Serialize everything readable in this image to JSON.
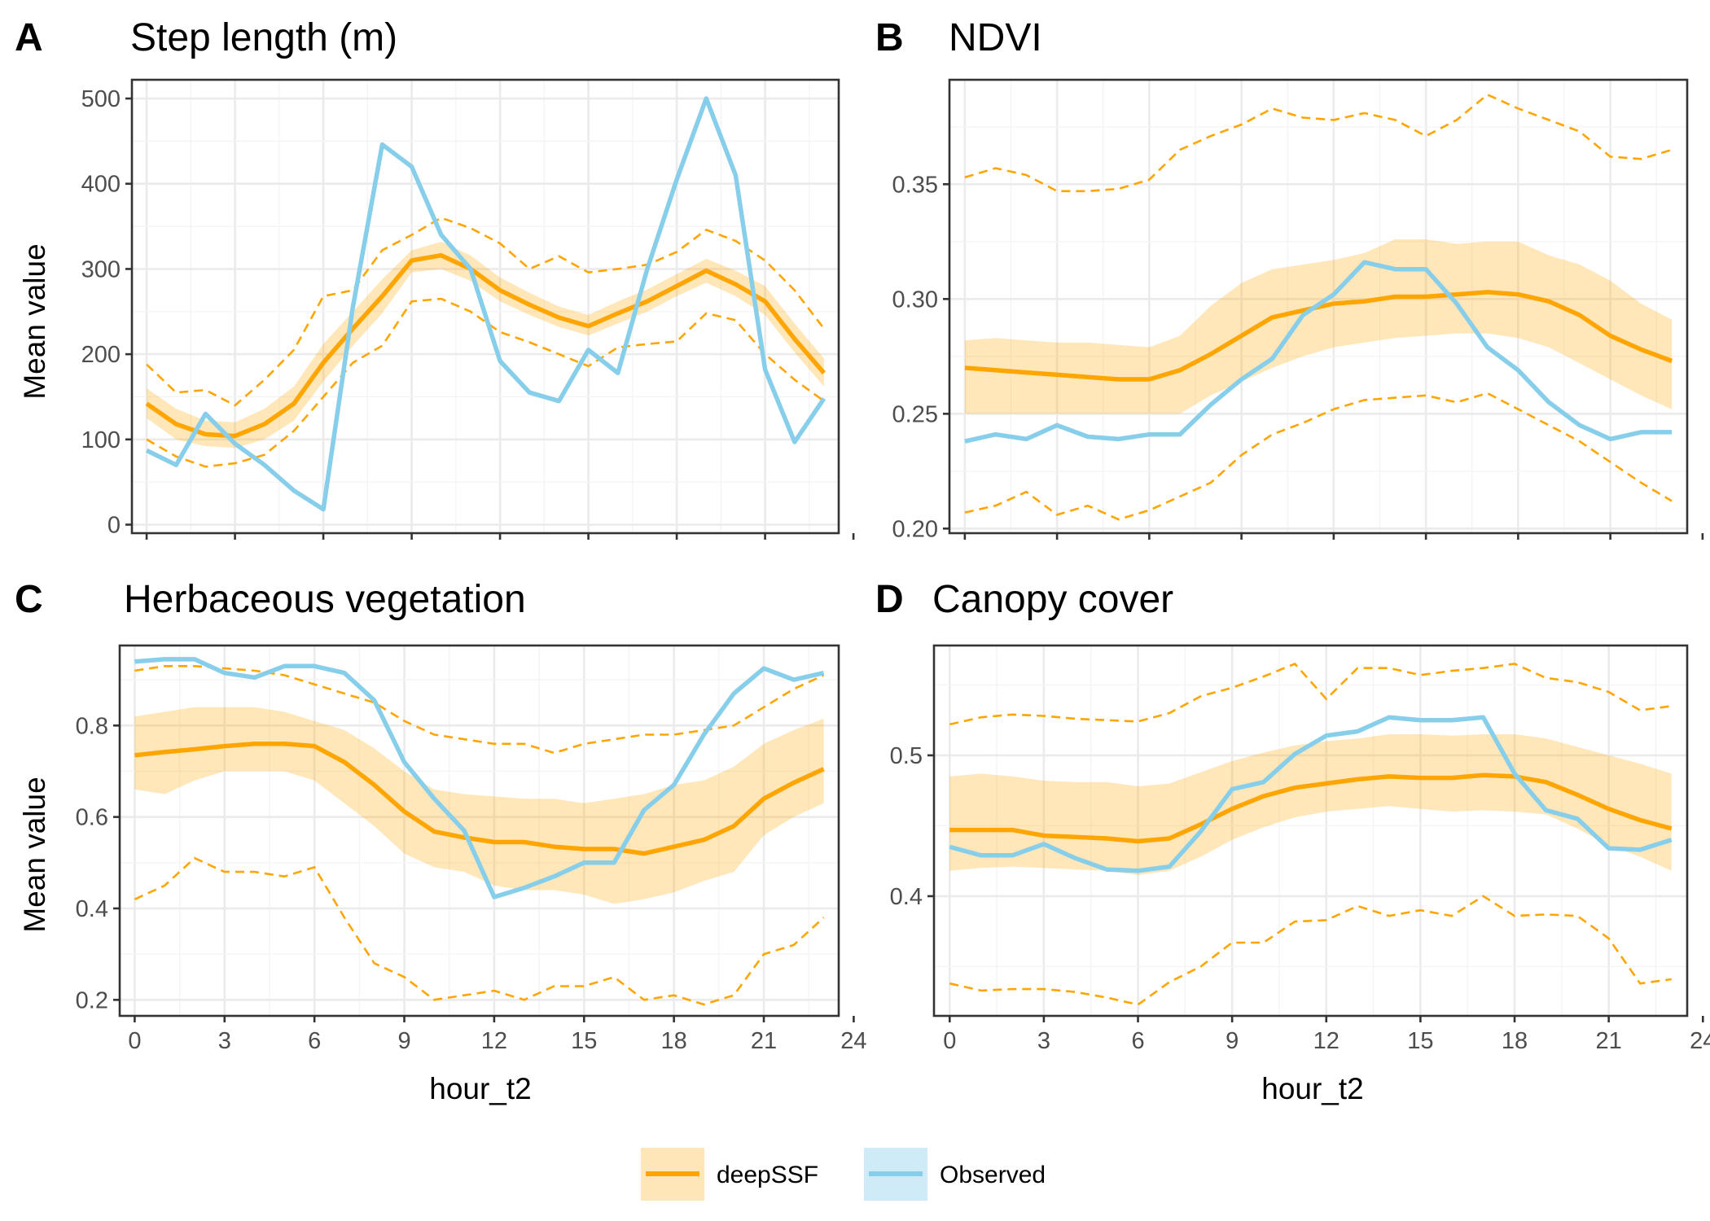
{
  "colors": {
    "deepSSF": "#FFA500",
    "observed": "#87CEEB",
    "grid_major": "#ebebeb",
    "grid_minor": "#f4f4f4",
    "panel_border": "#333333"
  },
  "legend": {
    "items": [
      {
        "label": "deepSSF",
        "color": "#FFA500"
      },
      {
        "label": "Observed",
        "color": "#87CEEB"
      }
    ],
    "position": "bottom"
  },
  "chart_data": [
    {
      "panel": "A",
      "title": "Step length (m)",
      "type": "line",
      "xlabel": "",
      "ylabel": "Mean value",
      "xlim": [
        -0.5,
        23.5
      ],
      "ylim": [
        -10,
        522
      ],
      "xticks": [],
      "yticks": [
        0,
        100,
        200,
        300,
        400,
        500
      ],
      "ytick_labels": [
        "0",
        "100",
        "200",
        "300",
        "400",
        "500"
      ],
      "grid": true,
      "x": [
        0,
        1,
        2,
        3,
        4,
        5,
        6,
        7,
        8,
        9,
        10,
        11,
        12,
        13,
        14,
        15,
        16,
        17,
        18,
        19,
        20,
        21,
        22,
        23
      ],
      "series": [
        {
          "name": "deepSSF",
          "kind": "mean",
          "values": [
            142,
            118,
            106,
            104,
            118,
            142,
            190,
            230,
            268,
            310,
            316,
            300,
            275,
            258,
            243,
            233,
            248,
            262,
            280,
            298,
            282,
            262,
            218,
            178
          ]
        },
        {
          "kind": "band_lower",
          "values": [
            125,
            100,
            92,
            90,
            100,
            122,
            168,
            210,
            248,
            296,
            300,
            286,
            262,
            246,
            232,
            222,
            236,
            250,
            268,
            284,
            268,
            246,
            202,
            162
          ]
        },
        {
          "kind": "band_upper",
          "values": [
            160,
            136,
            122,
            120,
            136,
            162,
            212,
            250,
            288,
            322,
            332,
            316,
            290,
            272,
            256,
            246,
            262,
            276,
            294,
            312,
            298,
            280,
            236,
            195
          ]
        },
        {
          "kind": "interval_lower",
          "values": [
            100,
            80,
            68,
            72,
            82,
            110,
            150,
            190,
            210,
            262,
            265,
            250,
            226,
            214,
            200,
            186,
            208,
            212,
            215,
            248,
            240,
            200,
            170,
            145
          ]
        },
        {
          "kind": "interval_upper",
          "values": [
            188,
            155,
            158,
            140,
            170,
            205,
            268,
            275,
            322,
            340,
            360,
            348,
            330,
            300,
            315,
            296,
            300,
            305,
            320,
            346,
            333,
            310,
            275,
            230
          ]
        },
        {
          "name": "Observed",
          "kind": "observed",
          "values": [
            87,
            70,
            130,
            95,
            70,
            40,
            18,
            255,
            446,
            420,
            340,
            300,
            192,
            155,
            145,
            205,
            178,
            300,
            405,
            500,
            410,
            182,
            97,
            148
          ]
        }
      ]
    },
    {
      "panel": "B",
      "title": "NDVI",
      "type": "line",
      "xlabel": "",
      "ylabel": "",
      "xlim": [
        -0.5,
        23.5
      ],
      "ylim": [
        0.198,
        0.3955
      ],
      "xticks": [],
      "yticks": [
        0.2,
        0.25,
        0.3,
        0.35
      ],
      "ytick_labels": [
        "0.20",
        "0.25",
        "0.30",
        "0.35"
      ],
      "grid": true,
      "x": [
        0,
        1,
        2,
        3,
        4,
        5,
        6,
        7,
        8,
        9,
        10,
        11,
        12,
        13,
        14,
        15,
        16,
        17,
        18,
        19,
        20,
        21,
        22,
        23
      ],
      "series": [
        {
          "name": "deepSSF",
          "kind": "mean",
          "values": [
            0.27,
            0.269,
            0.268,
            0.267,
            0.266,
            0.265,
            0.265,
            0.269,
            0.276,
            0.284,
            0.292,
            0.295,
            0.298,
            0.299,
            0.301,
            0.301,
            0.302,
            0.303,
            0.302,
            0.299,
            0.293,
            0.284,
            0.278,
            0.273
          ]
        },
        {
          "kind": "band_lower",
          "values": [
            0.25,
            0.25,
            0.25,
            0.25,
            0.25,
            0.25,
            0.25,
            0.25,
            0.258,
            0.264,
            0.27,
            0.275,
            0.279,
            0.281,
            0.283,
            0.284,
            0.285,
            0.285,
            0.283,
            0.279,
            0.272,
            0.265,
            0.258,
            0.252
          ]
        },
        {
          "kind": "band_upper",
          "values": [
            0.282,
            0.283,
            0.282,
            0.281,
            0.281,
            0.28,
            0.279,
            0.284,
            0.297,
            0.307,
            0.313,
            0.315,
            0.317,
            0.32,
            0.326,
            0.326,
            0.324,
            0.325,
            0.325,
            0.319,
            0.315,
            0.308,
            0.298,
            0.291
          ]
        },
        {
          "kind": "interval_lower",
          "values": [
            0.207,
            0.21,
            0.216,
            0.206,
            0.21,
            0.204,
            0.208,
            0.214,
            0.22,
            0.232,
            0.241,
            0.246,
            0.252,
            0.256,
            0.257,
            0.258,
            0.255,
            0.259,
            0.252,
            0.245,
            0.238,
            0.229,
            0.22,
            0.212
          ]
        },
        {
          "kind": "interval_upper",
          "values": [
            0.353,
            0.357,
            0.354,
            0.347,
            0.347,
            0.348,
            0.352,
            0.365,
            0.371,
            0.376,
            0.383,
            0.379,
            0.378,
            0.381,
            0.378,
            0.371,
            0.378,
            0.389,
            0.383,
            0.378,
            0.373,
            0.362,
            0.361,
            0.365
          ]
        },
        {
          "name": "Observed",
          "kind": "observed",
          "values": [
            0.238,
            0.241,
            0.239,
            0.245,
            0.24,
            0.239,
            0.241,
            0.241,
            0.254,
            0.265,
            0.274,
            0.293,
            0.302,
            0.316,
            0.313,
            0.313,
            0.298,
            0.279,
            0.269,
            0.255,
            0.245,
            0.239,
            0.242,
            0.242
          ]
        }
      ]
    },
    {
      "panel": "C",
      "title": "Herbaceous vegetation",
      "type": "line",
      "xlabel": "hour_t2",
      "ylabel": "Mean value",
      "xlim": [
        -0.5,
        23.5
      ],
      "ylim": [
        0.165,
        0.975
      ],
      "xticks": [
        0,
        3,
        6,
        9,
        12,
        15,
        18,
        21,
        24
      ],
      "xtick_labels": [
        "0",
        "3",
        "6",
        "9",
        "12",
        "15",
        "18",
        "21",
        "24"
      ],
      "yticks": [
        0.2,
        0.4,
        0.6,
        0.8
      ],
      "ytick_labels": [
        "0.2",
        "0.4",
        "0.6",
        "0.8"
      ],
      "grid": true,
      "x": [
        0,
        1,
        2,
        3,
        4,
        5,
        6,
        7,
        8,
        9,
        10,
        11,
        12,
        13,
        14,
        15,
        16,
        17,
        18,
        19,
        20,
        21,
        22,
        23
      ],
      "series": [
        {
          "name": "deepSSF",
          "kind": "mean",
          "values": [
            0.735,
            0.742,
            0.748,
            0.755,
            0.76,
            0.76,
            0.755,
            0.72,
            0.67,
            0.612,
            0.568,
            0.555,
            0.545,
            0.545,
            0.535,
            0.53,
            0.53,
            0.52,
            0.535,
            0.55,
            0.58,
            0.64,
            0.675,
            0.705
          ]
        },
        {
          "kind": "band_lower",
          "values": [
            0.66,
            0.65,
            0.68,
            0.7,
            0.7,
            0.7,
            0.68,
            0.63,
            0.58,
            0.52,
            0.49,
            0.48,
            0.45,
            0.44,
            0.44,
            0.43,
            0.41,
            0.42,
            0.435,
            0.46,
            0.48,
            0.56,
            0.6,
            0.63
          ]
        },
        {
          "kind": "band_upper",
          "values": [
            0.82,
            0.83,
            0.84,
            0.84,
            0.84,
            0.83,
            0.81,
            0.79,
            0.75,
            0.7,
            0.66,
            0.65,
            0.645,
            0.64,
            0.64,
            0.63,
            0.64,
            0.65,
            0.67,
            0.68,
            0.71,
            0.76,
            0.79,
            0.815
          ]
        },
        {
          "kind": "interval_lower",
          "values": [
            0.42,
            0.45,
            0.51,
            0.48,
            0.48,
            0.47,
            0.49,
            0.38,
            0.28,
            0.25,
            0.2,
            0.21,
            0.22,
            0.2,
            0.23,
            0.23,
            0.25,
            0.2,
            0.21,
            0.19,
            0.21,
            0.3,
            0.32,
            0.38
          ]
        },
        {
          "kind": "interval_upper",
          "values": [
            0.92,
            0.93,
            0.93,
            0.925,
            0.92,
            0.91,
            0.89,
            0.87,
            0.85,
            0.81,
            0.78,
            0.77,
            0.76,
            0.76,
            0.74,
            0.76,
            0.77,
            0.78,
            0.78,
            0.79,
            0.8,
            0.84,
            0.88,
            0.91
          ]
        },
        {
          "name": "Observed",
          "kind": "observed",
          "values": [
            0.94,
            0.945,
            0.945,
            0.915,
            0.905,
            0.93,
            0.93,
            0.915,
            0.855,
            0.72,
            0.64,
            0.57,
            0.425,
            0.445,
            0.47,
            0.5,
            0.5,
            0.615,
            0.67,
            0.78,
            0.87,
            0.925,
            0.9,
            0.915
          ]
        }
      ]
    },
    {
      "panel": "D",
      "title": "Canopy cover",
      "type": "line",
      "xlabel": "hour_t2",
      "ylabel": "",
      "xlim": [
        -0.5,
        23.5
      ],
      "ylim": [
        0.315,
        0.578
      ],
      "xticks": [
        0,
        3,
        6,
        9,
        12,
        15,
        18,
        21,
        24
      ],
      "xtick_labels": [
        "0",
        "3",
        "6",
        "9",
        "12",
        "15",
        "18",
        "21",
        "24"
      ],
      "yticks": [
        0.4,
        0.5
      ],
      "ytick_labels": [
        "0.4",
        "0.5"
      ],
      "grid": true,
      "x": [
        0,
        1,
        2,
        3,
        4,
        5,
        6,
        7,
        8,
        9,
        10,
        11,
        12,
        13,
        14,
        15,
        16,
        17,
        18,
        19,
        20,
        21,
        22,
        23
      ],
      "series": [
        {
          "name": "deepSSF",
          "kind": "mean",
          "values": [
            0.447,
            0.447,
            0.447,
            0.443,
            0.442,
            0.441,
            0.439,
            0.441,
            0.451,
            0.462,
            0.471,
            0.477,
            0.48,
            0.483,
            0.485,
            0.484,
            0.484,
            0.486,
            0.485,
            0.481,
            0.472,
            0.462,
            0.454,
            0.448
          ]
        },
        {
          "kind": "band_lower",
          "values": [
            0.418,
            0.42,
            0.421,
            0.42,
            0.419,
            0.418,
            0.415,
            0.418,
            0.428,
            0.44,
            0.449,
            0.456,
            0.46,
            0.462,
            0.464,
            0.462,
            0.46,
            0.461,
            0.46,
            0.458,
            0.448,
            0.436,
            0.428,
            0.418
          ]
        },
        {
          "kind": "band_upper",
          "values": [
            0.485,
            0.487,
            0.485,
            0.482,
            0.481,
            0.481,
            0.478,
            0.48,
            0.488,
            0.496,
            0.502,
            0.507,
            0.51,
            0.512,
            0.515,
            0.515,
            0.514,
            0.515,
            0.515,
            0.512,
            0.506,
            0.5,
            0.494,
            0.487
          ]
        },
        {
          "kind": "interval_lower",
          "values": [
            0.338,
            0.333,
            0.334,
            0.334,
            0.332,
            0.328,
            0.323,
            0.339,
            0.35,
            0.367,
            0.367,
            0.382,
            0.383,
            0.393,
            0.386,
            0.39,
            0.386,
            0.4,
            0.386,
            0.387,
            0.386,
            0.37,
            0.338,
            0.341
          ]
        },
        {
          "kind": "interval_upper",
          "values": [
            0.522,
            0.527,
            0.529,
            0.528,
            0.526,
            0.525,
            0.524,
            0.53,
            0.542,
            0.548,
            0.556,
            0.565,
            0.54,
            0.562,
            0.562,
            0.557,
            0.56,
            0.562,
            0.565,
            0.555,
            0.552,
            0.545,
            0.532,
            0.535
          ]
        },
        {
          "name": "Observed",
          "kind": "observed",
          "values": [
            0.435,
            0.429,
            0.429,
            0.437,
            0.427,
            0.419,
            0.418,
            0.421,
            0.446,
            0.476,
            0.481,
            0.501,
            0.514,
            0.517,
            0.527,
            0.525,
            0.525,
            0.527,
            0.487,
            0.461,
            0.455,
            0.434,
            0.433,
            0.44
          ]
        }
      ]
    }
  ]
}
